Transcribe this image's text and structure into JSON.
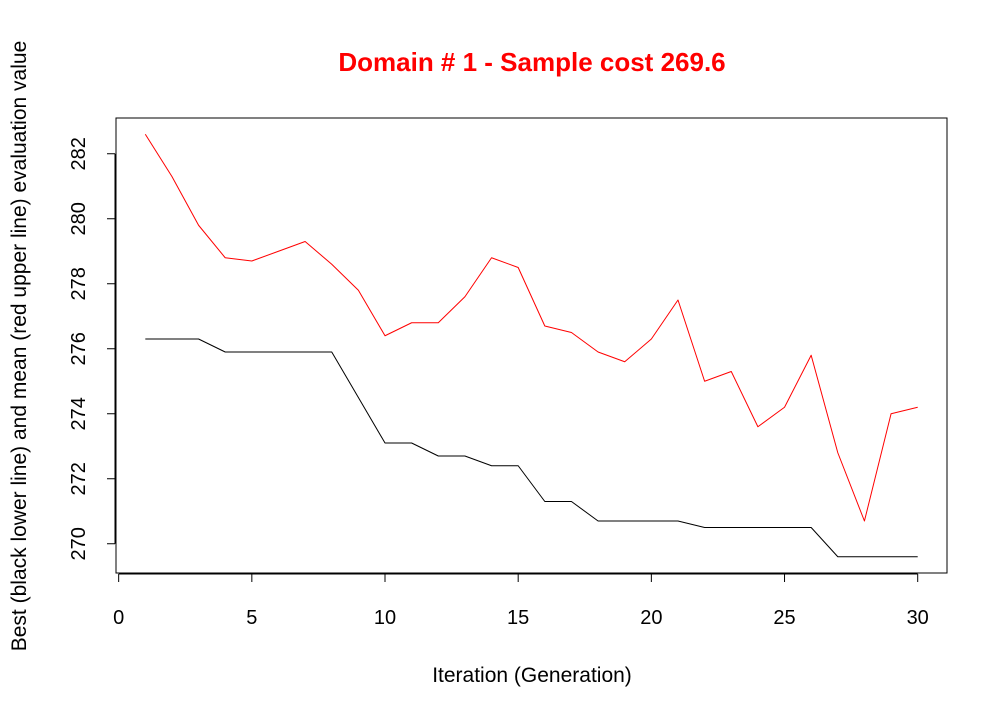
{
  "chart_data": {
    "type": "line",
    "title": "Domain # 1  - Sample cost 269.6",
    "xlabel": "Iteration (Generation)",
    "ylabel": "Best (black lower line) and mean (red upper line) evaluation value",
    "xlim": [
      -0.1,
      31.1
    ],
    "ylim": [
      269.1,
      283.1
    ],
    "x_ticks": [
      0,
      5,
      10,
      15,
      20,
      25,
      30
    ],
    "y_ticks": [
      270,
      272,
      274,
      276,
      278,
      280,
      282
    ],
    "grid": false,
    "colors": {
      "title": "#ff0000",
      "mean": "#ff0000",
      "best": "#000000",
      "axis": "#000000"
    },
    "x": [
      1,
      2,
      3,
      4,
      5,
      6,
      7,
      8,
      9,
      10,
      11,
      12,
      13,
      14,
      15,
      16,
      17,
      18,
      19,
      20,
      21,
      22,
      23,
      24,
      25,
      26,
      27,
      28,
      29,
      30
    ],
    "series": [
      {
        "key": "mean",
        "values": [
          282.6,
          281.3,
          279.8,
          278.8,
          278.7,
          279.0,
          279.3,
          278.6,
          277.8,
          276.4,
          276.8,
          276.8,
          277.6,
          278.8,
          278.5,
          276.7,
          276.5,
          275.9,
          275.6,
          276.3,
          277.5,
          275.0,
          275.3,
          273.6,
          274.2,
          275.8,
          272.8,
          270.7,
          274.0,
          274.2
        ]
      },
      {
        "key": "best",
        "values": [
          276.3,
          276.3,
          276.3,
          275.9,
          275.9,
          275.9,
          275.9,
          275.9,
          274.5,
          273.1,
          273.1,
          272.7,
          272.7,
          272.4,
          272.4,
          271.3,
          271.3,
          270.7,
          270.7,
          270.7,
          270.7,
          270.5,
          270.5,
          270.5,
          270.5,
          270.5,
          269.6,
          269.6,
          269.6,
          269.6
        ]
      }
    ]
  }
}
